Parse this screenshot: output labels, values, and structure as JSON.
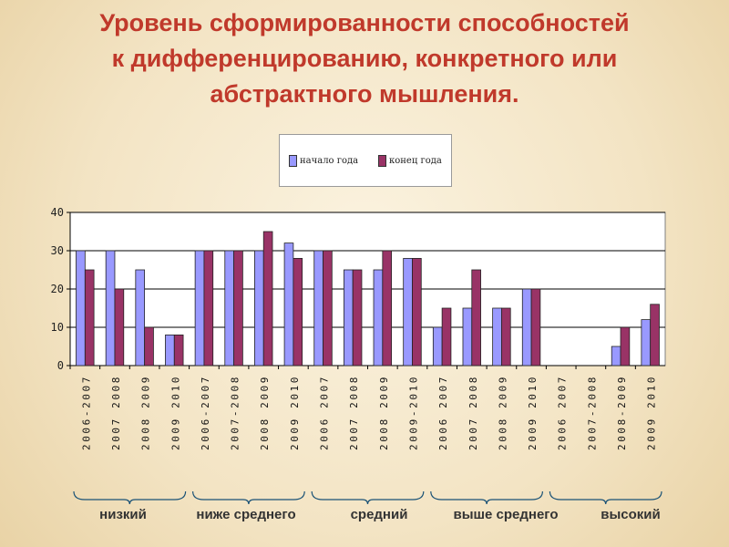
{
  "slide": {
    "title_lines": [
      "Уровень сформированности способностей",
      "к дифференцированию, конкретного или",
      "абстрактного мышления."
    ]
  },
  "colors": {
    "title": "#c0392b",
    "start_series": "#9999ff",
    "end_series": "#993366"
  },
  "legend": {
    "start_label": "начало года",
    "end_label": "конец года"
  },
  "group_labels": [
    "низкий",
    "ниже среднего",
    "средний",
    "выше среднего",
    "высокий"
  ],
  "chart_data": {
    "type": "bar",
    "ylim": [
      0,
      40
    ],
    "yticks": [
      0,
      10,
      20,
      30,
      40
    ],
    "grid": true,
    "legend_position": "top",
    "categories": [
      "2006-2007",
      "2007 2008",
      "2008 2009",
      "2009 2010",
      "2006-2007",
      "2007-2008",
      "2008 2009",
      "2009 2010",
      "2006 2007",
      "2007 2008",
      "2008 2009",
      "2009-2010",
      "2006 2007",
      "2007 2008",
      "2008 2009",
      "2009 2010",
      "2006 2007",
      "2007-2008",
      "2008-2009",
      "2009 2010"
    ],
    "groups": [
      {
        "name": "низкий",
        "categories": [
          0,
          1,
          2,
          3
        ]
      },
      {
        "name": "ниже среднего",
        "categories": [
          4,
          5,
          6,
          7
        ]
      },
      {
        "name": "средний",
        "categories": [
          8,
          9,
          10,
          11
        ]
      },
      {
        "name": "выше среднего",
        "categories": [
          12,
          13,
          14,
          15
        ]
      },
      {
        "name": "высокий",
        "categories": [
          16,
          17,
          18,
          19
        ]
      }
    ],
    "series": [
      {
        "name": "начало года",
        "values": [
          30,
          30,
          25,
          8,
          30,
          30,
          30,
          32,
          30,
          25,
          25,
          28,
          10,
          15,
          15,
          20,
          0,
          0,
          5,
          12
        ]
      },
      {
        "name": "конец года",
        "values": [
          25,
          20,
          10,
          8,
          30,
          30,
          35,
          28,
          30,
          25,
          30,
          28,
          15,
          25,
          15,
          20,
          0,
          0,
          10,
          16
        ]
      }
    ]
  }
}
